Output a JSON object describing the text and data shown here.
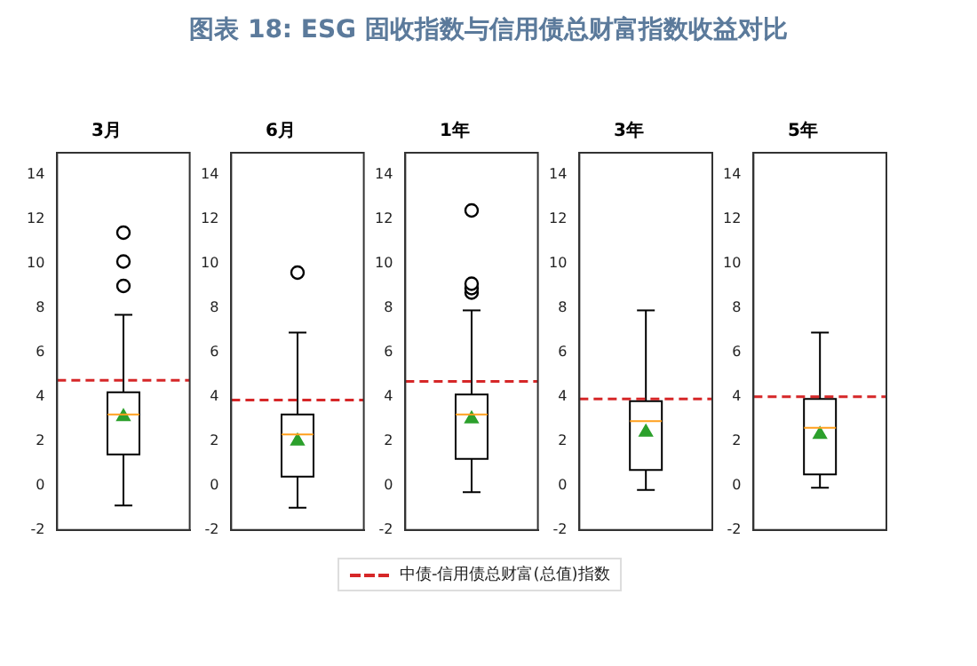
{
  "chart_data": [
    {
      "type": "other",
      "title": "图表 18: ESG 固收指数与信用债总财富指数收益对比"
    },
    {
      "type": "box",
      "title": "3月",
      "categories": [
        null
      ],
      "ylim": [
        -2,
        15
      ],
      "yticks": [
        -2,
        0,
        2,
        4,
        6,
        8,
        10,
        12,
        14
      ],
      "boxes": [
        {
          "low": -0.9,
          "q1": 1.4,
          "median": 3.2,
          "q3": 4.2,
          "high": 7.7,
          "mean": 3.1,
          "outliers": [
            9.0,
            10.1,
            11.4
          ]
        }
      ],
      "ref_lines": [
        {
          "axis": "y",
          "value": 4.75,
          "color": "#d62728",
          "line_style": "dashed"
        }
      ]
    },
    {
      "type": "box",
      "title": "6月",
      "categories": [
        null
      ],
      "ylim": [
        -2,
        15
      ],
      "yticks": [
        -2,
        0,
        2,
        4,
        6,
        8,
        10,
        12,
        14
      ],
      "boxes": [
        {
          "low": -1.0,
          "q1": 0.4,
          "median": 2.3,
          "q3": 3.2,
          "high": 6.9,
          "mean": 2.0,
          "outliers": [
            9.6
          ]
        }
      ],
      "ref_lines": [
        {
          "axis": "y",
          "value": 3.85,
          "color": "#d62728",
          "line_style": "dashed"
        }
      ]
    },
    {
      "type": "box",
      "title": "1年",
      "categories": [
        null
      ],
      "ylim": [
        -2,
        15
      ],
      "yticks": [
        -2,
        0,
        2,
        4,
        6,
        8,
        10,
        12,
        14
      ],
      "legend": "bottom",
      "boxes": [
        {
          "low": -0.3,
          "q1": 1.2,
          "median": 3.2,
          "q3": 4.1,
          "high": 7.9,
          "mean": 3.0,
          "outliers": [
            8.7,
            8.9,
            9.1,
            12.4
          ]
        }
      ],
      "ref_lines": [
        {
          "axis": "y",
          "value": 4.7,
          "color": "#d62728",
          "line_style": "dashed",
          "label": "中债-信用债总财富(总值)指数"
        }
      ]
    },
    {
      "type": "box",
      "title": "3年",
      "categories": [
        null
      ],
      "ylim": [
        -2,
        15
      ],
      "yticks": [
        -2,
        0,
        2,
        4,
        6,
        8,
        10,
        12,
        14
      ],
      "boxes": [
        {
          "low": -0.2,
          "q1": 0.7,
          "median": 2.9,
          "q3": 3.8,
          "high": 7.9,
          "mean": 2.4
        }
      ],
      "ref_lines": [
        {
          "axis": "y",
          "value": 3.9,
          "color": "#d62728",
          "line_style": "dashed"
        }
      ]
    },
    {
      "type": "box",
      "title": "5年",
      "categories": [
        null
      ],
      "ylim": [
        -2,
        15
      ],
      "yticks": [
        -2,
        0,
        2,
        4,
        6,
        8,
        10,
        12,
        14
      ],
      "boxes": [
        {
          "low": -0.1,
          "q1": 0.5,
          "median": 2.6,
          "q3": 3.9,
          "high": 6.9,
          "mean": 2.3
        }
      ],
      "ref_lines": [
        {
          "axis": "y",
          "value": 4.0,
          "color": "#d62728",
          "line_style": "dashed"
        }
      ]
    }
  ]
}
